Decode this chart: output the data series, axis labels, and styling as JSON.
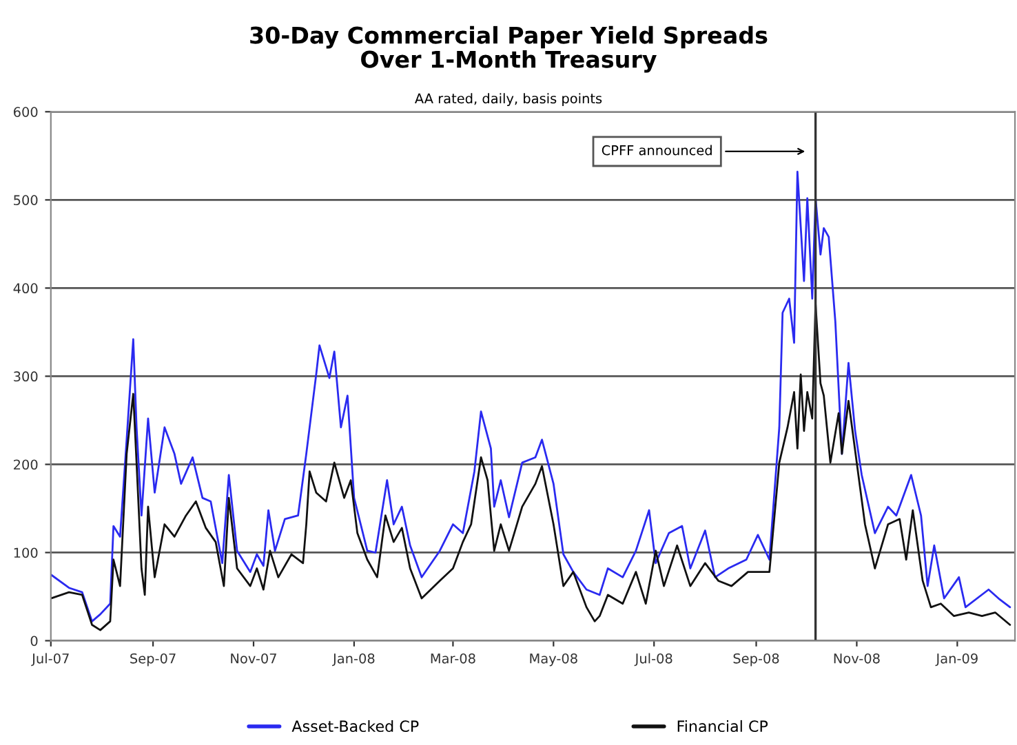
{
  "chart_data": {
    "type": "line",
    "title": "30-Day Commercial Paper Yield Spreads\nOver 1-Month Treasury",
    "subtitle": "AA rated, daily, basis points",
    "series": [
      {
        "name": "Asset-Backed CP",
        "color": "#2a2af0",
        "x": [
          "2007-07-01",
          "2007-07-12",
          "2007-07-20",
          "2007-07-26",
          "2007-07-31",
          "2007-08-06",
          "2007-08-08",
          "2007-08-12",
          "2007-08-16",
          "2007-08-20",
          "2007-08-22",
          "2007-08-25",
          "2007-08-29",
          "2007-09-02",
          "2007-09-08",
          "2007-09-14",
          "2007-09-18",
          "2007-09-25",
          "2007-10-01",
          "2007-10-06",
          "2007-10-13",
          "2007-10-17",
          "2007-10-22",
          "2007-10-30",
          "2007-11-03",
          "2007-11-07",
          "2007-11-10",
          "2007-11-14",
          "2007-11-20",
          "2007-11-28",
          "2007-12-03",
          "2007-12-09",
          "2007-12-11",
          "2007-12-17",
          "2007-12-20",
          "2007-12-24",
          "2007-12-28",
          "2008-01-01",
          "2008-01-09",
          "2008-01-14",
          "2008-01-21",
          "2008-01-25",
          "2008-01-30",
          "2008-02-04",
          "2008-02-11",
          "2008-02-22",
          "2008-03-01",
          "2008-03-07",
          "2008-03-14",
          "2008-03-18",
          "2008-03-24",
          "2008-03-26",
          "2008-03-30",
          "2008-04-04",
          "2008-04-12",
          "2008-04-20",
          "2008-04-24",
          "2008-05-01",
          "2008-05-07",
          "2008-05-13",
          "2008-05-21",
          "2008-05-29",
          "2008-06-03",
          "2008-06-12",
          "2008-06-20",
          "2008-06-28",
          "2008-07-02",
          "2008-07-10",
          "2008-07-18",
          "2008-07-23",
          "2008-08-01",
          "2008-08-07",
          "2008-08-15",
          "2008-08-26",
          "2008-09-02",
          "2008-09-09",
          "2008-09-15",
          "2008-09-17",
          "2008-09-21",
          "2008-09-24",
          "2008-09-26",
          "2008-09-30",
          "2008-10-02",
          "2008-10-05",
          "2008-10-07",
          "2008-10-10",
          "2008-10-12",
          "2008-10-15",
          "2008-10-19",
          "2008-10-23",
          "2008-10-27",
          "2008-10-31",
          "2008-11-04",
          "2008-11-12",
          "2008-11-20",
          "2008-11-25",
          "2008-12-04",
          "2008-12-10",
          "2008-12-14",
          "2008-12-18",
          "2008-12-24",
          "2009-01-02",
          "2009-01-06",
          "2009-01-20",
          "2009-01-26",
          "2009-02-02"
        ],
        "values": [
          75,
          60,
          55,
          22,
          30,
          42,
          130,
          118,
          228,
          342,
          242,
          142,
          252,
          168,
          242,
          212,
          178,
          208,
          162,
          158,
          88,
          188,
          102,
          78,
          98,
          85,
          148,
          102,
          138,
          142,
          212,
          302,
          335,
          298,
          328,
          242,
          278,
          162,
          102,
          100,
          182,
          132,
          152,
          108,
          72,
          102,
          132,
          122,
          192,
          260,
          218,
          152,
          182,
          140,
          202,
          208,
          228,
          178,
          98,
          78,
          58,
          52,
          82,
          72,
          102,
          148,
          88,
          122,
          130,
          82,
          125,
          72,
          82,
          92,
          120,
          92,
          242,
          372,
          388,
          338,
          532,
          408,
          502,
          388,
          502,
          438,
          468,
          458,
          362,
          212,
          315,
          238,
          188,
          122,
          152,
          142,
          188,
          142,
          62,
          108,
          48,
          72,
          38,
          58,
          48,
          38
        ]
      },
      {
        "name": "Financial CP",
        "color": "#111111",
        "x": [
          "2007-07-01",
          "2007-07-12",
          "2007-07-20",
          "2007-07-26",
          "2007-07-31",
          "2007-08-06",
          "2007-08-08",
          "2007-08-12",
          "2007-08-16",
          "2007-08-20",
          "2007-08-22",
          "2007-08-25",
          "2007-08-27",
          "2007-08-29",
          "2007-09-02",
          "2007-09-08",
          "2007-09-14",
          "2007-09-21",
          "2007-09-27",
          "2007-10-03",
          "2007-10-09",
          "2007-10-14",
          "2007-10-17",
          "2007-10-22",
          "2007-10-30",
          "2007-11-03",
          "2007-11-07",
          "2007-11-11",
          "2007-11-16",
          "2007-11-24",
          "2007-12-01",
          "2007-12-03",
          "2007-12-05",
          "2007-12-09",
          "2007-12-15",
          "2007-12-20",
          "2007-12-26",
          "2007-12-30",
          "2008-01-03",
          "2008-01-09",
          "2008-01-15",
          "2008-01-20",
          "2008-01-25",
          "2008-01-30",
          "2008-02-04",
          "2008-02-11",
          "2008-02-22",
          "2008-03-01",
          "2008-03-07",
          "2008-03-12",
          "2008-03-18",
          "2008-03-22",
          "2008-03-26",
          "2008-03-30",
          "2008-04-04",
          "2008-04-12",
          "2008-04-20",
          "2008-04-24",
          "2008-05-01",
          "2008-05-07",
          "2008-05-13",
          "2008-05-21",
          "2008-05-26",
          "2008-05-29",
          "2008-06-03",
          "2008-06-12",
          "2008-06-20",
          "2008-06-26",
          "2008-07-02",
          "2008-07-07",
          "2008-07-15",
          "2008-07-23",
          "2008-08-01",
          "2008-08-09",
          "2008-08-17",
          "2008-08-27",
          "2008-09-09",
          "2008-09-15",
          "2008-09-20",
          "2008-09-24",
          "2008-09-26",
          "2008-09-28",
          "2008-09-30",
          "2008-10-02",
          "2008-10-05",
          "2008-10-07",
          "2008-10-10",
          "2008-10-12",
          "2008-10-16",
          "2008-10-21",
          "2008-10-23",
          "2008-10-27",
          "2008-11-02",
          "2008-11-06",
          "2008-11-12",
          "2008-11-20",
          "2008-11-27",
          "2008-12-01",
          "2008-12-05",
          "2008-12-11",
          "2008-12-16",
          "2008-12-22",
          "2008-12-30",
          "2009-01-08",
          "2009-01-16",
          "2009-01-24",
          "2009-02-02"
        ],
        "values": [
          48,
          55,
          52,
          18,
          12,
          22,
          92,
          62,
          212,
          280,
          202,
          82,
          52,
          152,
          72,
          132,
          118,
          142,
          158,
          128,
          112,
          62,
          162,
          82,
          62,
          82,
          58,
          102,
          72,
          98,
          88,
          132,
          192,
          168,
          158,
          202,
          162,
          182,
          122,
          92,
          72,
          142,
          112,
          128,
          82,
          48,
          68,
          82,
          112,
          132,
          208,
          182,
          102,
          132,
          102,
          152,
          178,
          198,
          132,
          62,
          78,
          38,
          22,
          28,
          52,
          42,
          78,
          42,
          102,
          62,
          108,
          62,
          88,
          68,
          62,
          78,
          78,
          202,
          242,
          282,
          218,
          302,
          238,
          282,
          252,
          382,
          292,
          278,
          202,
          258,
          212,
          272,
          188,
          132,
          82,
          132,
          138,
          92,
          148,
          68,
          38,
          42,
          28,
          32,
          28,
          32,
          18
        ]
      }
    ],
    "xlim": [
      "2007-07-01",
      "2009-02-05"
    ],
    "xticks": [
      {
        "value": "2007-07-01",
        "label": "Jul-07"
      },
      {
        "value": "2007-09-01",
        "label": "Sep-07"
      },
      {
        "value": "2007-11-01",
        "label": "Nov-07"
      },
      {
        "value": "2008-01-01",
        "label": "Jan-08"
      },
      {
        "value": "2008-03-01",
        "label": "Mar-08"
      },
      {
        "value": "2008-05-01",
        "label": "May-08"
      },
      {
        "value": "2008-07-01",
        "label": "Jul-08"
      },
      {
        "value": "2008-09-01",
        "label": "Sep-08"
      },
      {
        "value": "2008-11-01",
        "label": "Nov-08"
      },
      {
        "value": "2009-01-01",
        "label": "Jan-09"
      }
    ],
    "ylim": [
      0,
      600
    ],
    "yticks": [
      0,
      100,
      200,
      300,
      400,
      500,
      600
    ],
    "ref_lines": [
      {
        "axis": "x",
        "value": "2008-10-07",
        "label": "CPFF announced",
        "color": "#333333"
      }
    ],
    "grid": "y",
    "legend": "bottom",
    "marker": "none",
    "line_style": "solid"
  }
}
